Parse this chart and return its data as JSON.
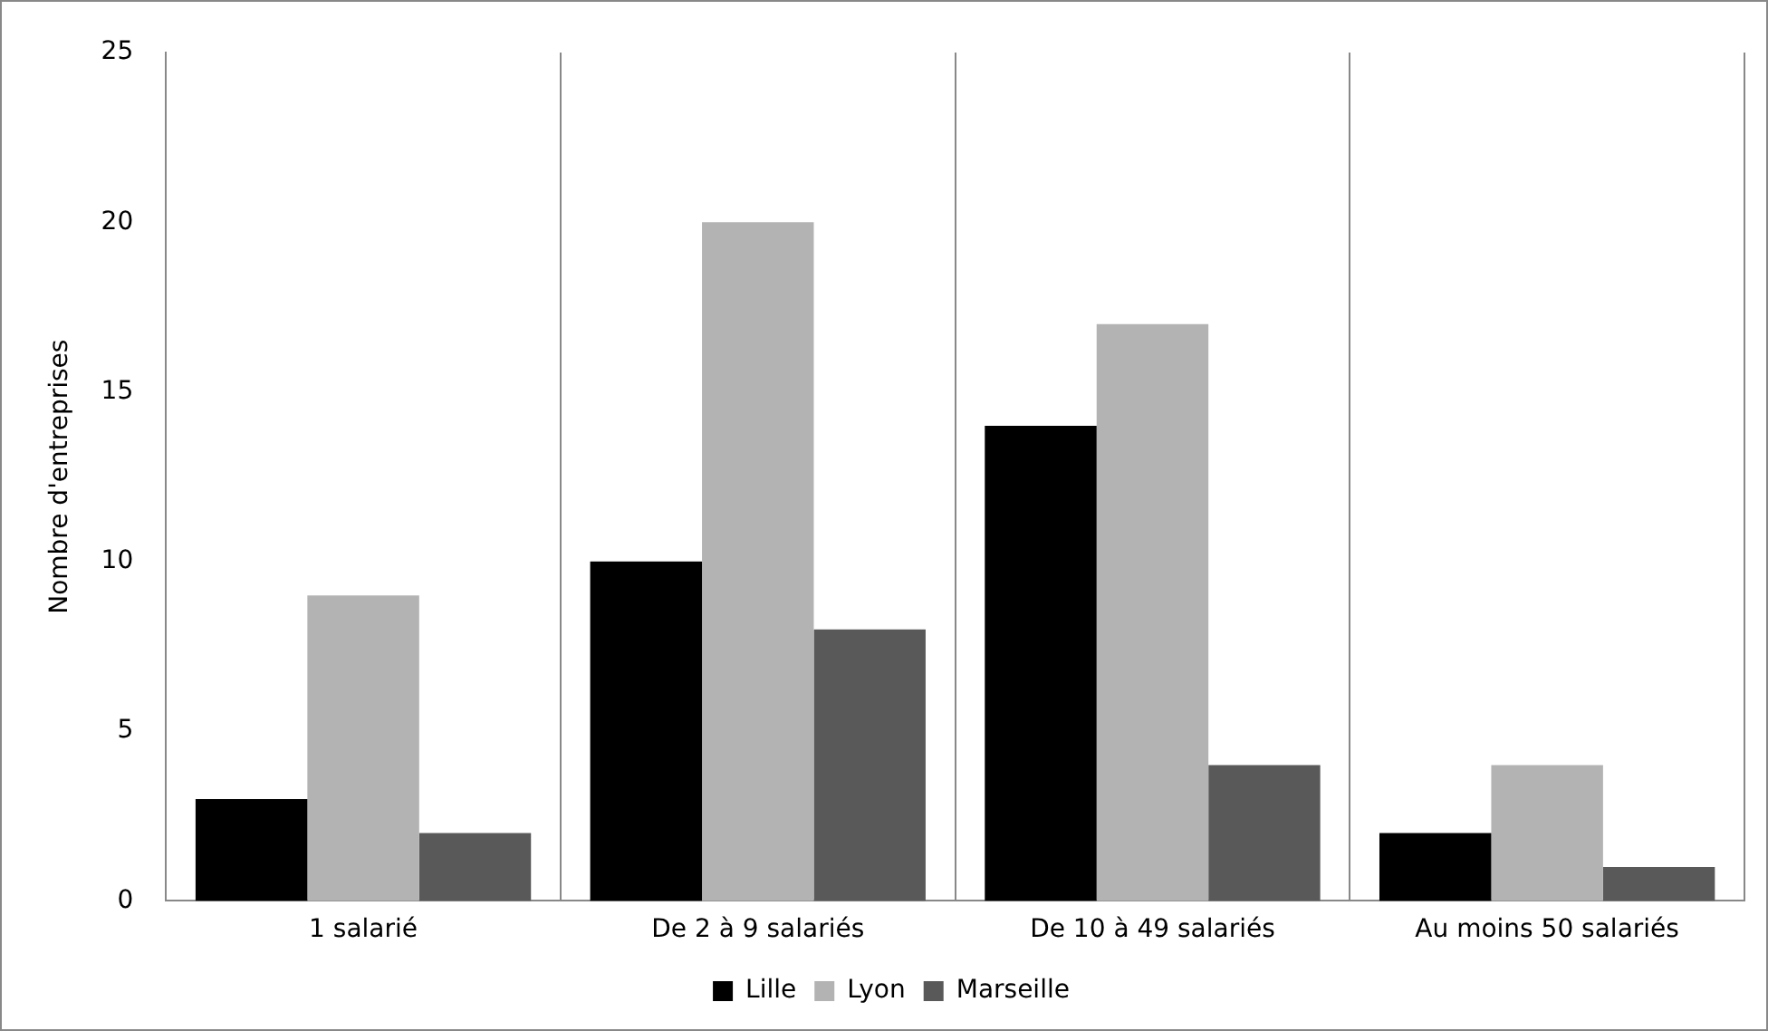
{
  "chart_data": {
    "type": "bar",
    "ylabel": "Nombre d'entreprises",
    "categories": [
      "1 salarié",
      "De 2 à 9 salariés",
      "De 10 à 49 salariés",
      "Au moins 50 salariés"
    ],
    "series": [
      {
        "name": "Lille",
        "color": "#000000",
        "values": [
          3,
          10,
          14,
          2
        ]
      },
      {
        "name": "Lyon",
        "color": "#b3b3b3",
        "values": [
          9,
          20,
          17,
          4
        ]
      },
      {
        "name": "Marseille",
        "color": "#595959",
        "values": [
          2,
          8,
          4,
          1
        ]
      }
    ],
    "ylim": [
      0,
      25
    ],
    "yticks": [
      0,
      5,
      10,
      15,
      20,
      25
    ],
    "grid": "x",
    "legend": "bottom"
  }
}
